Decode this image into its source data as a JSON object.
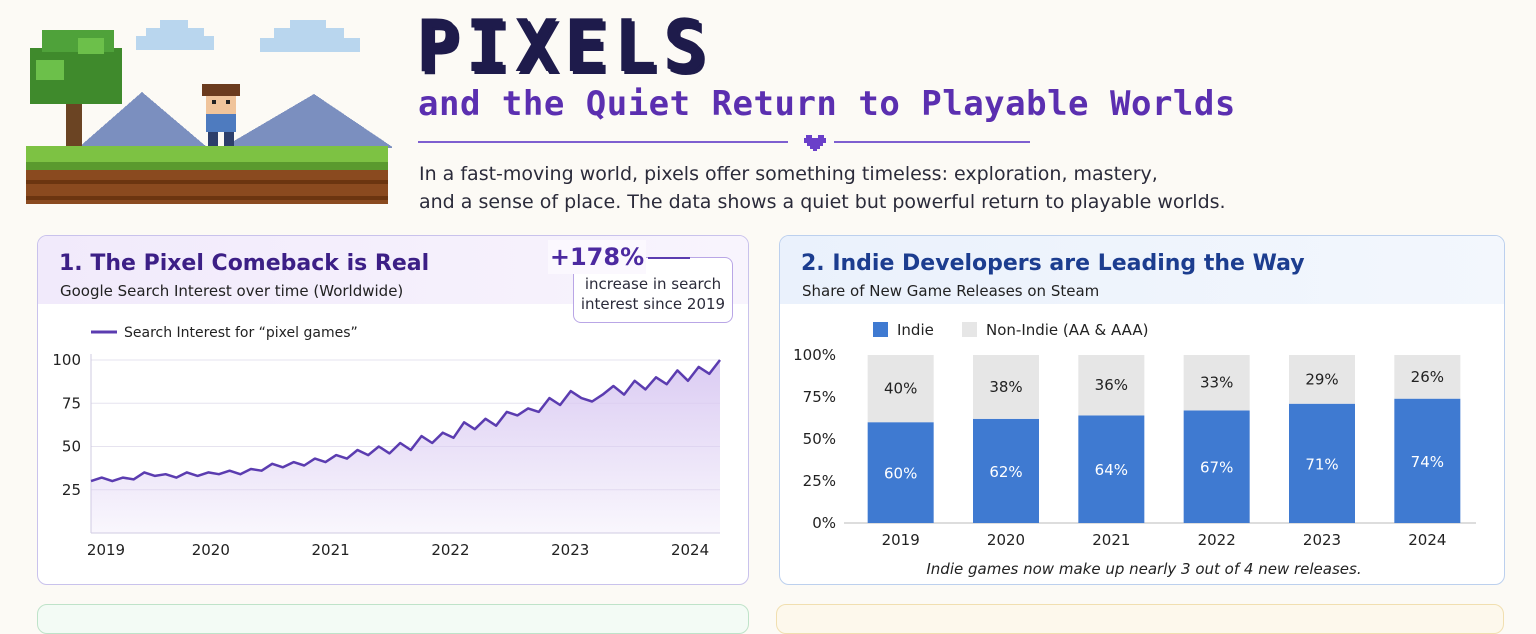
{
  "header": {
    "title": "PIXELS",
    "subtitle": "and the Quiet Return to Playable Worlds",
    "intro_line1": "In a fast-moving world, pixels offer something timeless: exploration, mastery,",
    "intro_line2": "and a sense of place. The data shows a quiet but powerful return to playable worlds."
  },
  "colors": {
    "purple": "#5b3cb0",
    "purple_fill": "#d9c9f2",
    "indie_blue": "#3f7ad1",
    "non_indie_gray": "#e6e6e6",
    "navy": "#1e1b4b"
  },
  "card1": {
    "title": "1. The Pixel Comeback is Real",
    "subtitle": "Google Search Interest over time (Worldwide)",
    "stat_value": "+178%",
    "stat_line1": "increase in search",
    "stat_line2": "interest since 2019",
    "legend": "Search Interest for “pixel games”"
  },
  "card2": {
    "title": "2. Indie Developers are Leading the Way",
    "subtitle": "Share of New Game Releases on Steam",
    "legend_indie": "Indie",
    "legend_non_indie": "Non-Indie (AA & AAA)",
    "footnote": "Indie games now make up nearly 3 out of 4 new releases."
  },
  "chart_data": [
    {
      "type": "area",
      "title": "1. The Pixel Comeback is Real",
      "subtitle": "Google Search Interest over time (Worldwide)",
      "series_name": "Search Interest for “pixel games”",
      "x_start": 2019.0,
      "x_end": 2024.25,
      "x_ticks": [
        "2019",
        "2020",
        "2021",
        "2022",
        "2023",
        "2024"
      ],
      "y_ticks": [
        25,
        50,
        75,
        100
      ],
      "ylim": [
        0,
        100
      ],
      "values": [
        30,
        32,
        30,
        32,
        31,
        35,
        33,
        34,
        32,
        35,
        33,
        35,
        34,
        36,
        34,
        37,
        36,
        40,
        38,
        41,
        39,
        43,
        41,
        45,
        43,
        48,
        45,
        50,
        46,
        52,
        48,
        56,
        52,
        58,
        55,
        64,
        60,
        66,
        62,
        70,
        68,
        72,
        70,
        78,
        74,
        82,
        78,
        76,
        80,
        85,
        80,
        88,
        83,
        90,
        86,
        94,
        88,
        96,
        92,
        100
      ]
    },
    {
      "type": "bar",
      "stacked": true,
      "title": "2. Indie Developers are Leading the Way",
      "subtitle": "Share of New Game Releases on Steam",
      "categories": [
        "2019",
        "2020",
        "2021",
        "2022",
        "2023",
        "2024"
      ],
      "y_ticks": [
        "0%",
        "25%",
        "50%",
        "75%",
        "100%"
      ],
      "ylim": [
        0,
        100
      ],
      "series": [
        {
          "name": "Indie",
          "values": [
            60,
            62,
            64,
            67,
            71,
            74
          ],
          "labels": [
            "60%",
            "62%",
            "64%",
            "67%",
            "71%",
            "74%"
          ]
        },
        {
          "name": "Non-Indie (AA & AAA)",
          "values": [
            40,
            38,
            36,
            33,
            29,
            26
          ],
          "labels": [
            "40%",
            "38%",
            "36%",
            "33%",
            "29%",
            "26%"
          ]
        }
      ]
    }
  ]
}
